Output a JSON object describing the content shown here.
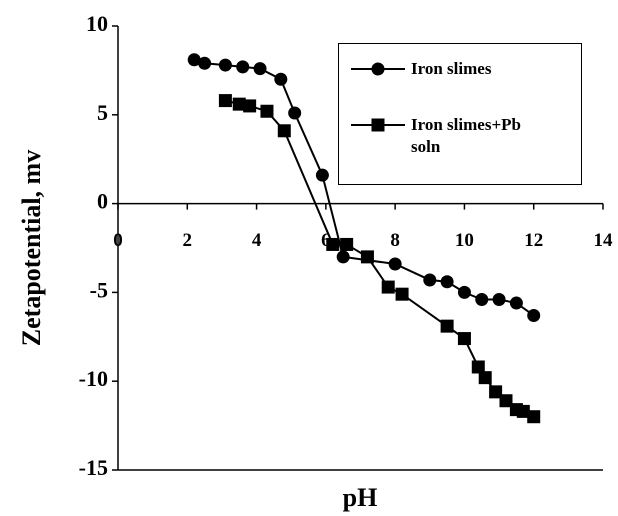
{
  "chart_data": {
    "type": "line",
    "x_label": "pH",
    "y_label": "Zetapotential, mv",
    "xlim": [
      0,
      14
    ],
    "xticks": [
      0,
      2,
      4,
      6,
      8,
      10,
      12,
      14
    ],
    "ylim": [
      -15,
      10
    ],
    "yticks": [
      -15,
      -10,
      -5,
      0,
      5,
      10
    ],
    "series": [
      {
        "name": "Iron slimes",
        "color": "#000000",
        "marker": "circle",
        "x": [
          2.2,
          2.5,
          3.1,
          3.6,
          4.1,
          4.7,
          5.1,
          5.9,
          6.5,
          8.0,
          9.0,
          9.5,
          10.0,
          10.5,
          11.0,
          11.5,
          12.0
        ],
        "values": [
          8.1,
          7.9,
          7.8,
          7.7,
          7.6,
          7.0,
          5.1,
          1.6,
          -3.0,
          -3.4,
          -4.3,
          -4.4,
          -5.0,
          -5.4,
          -5.4,
          -5.6,
          -6.3
        ]
      },
      {
        "name": "Iron slimes+Pb soln",
        "color": "#000000",
        "marker": "square",
        "x": [
          3.1,
          3.5,
          3.8,
          4.3,
          4.8,
          6.2,
          6.6,
          7.2,
          7.8,
          8.2,
          9.5,
          10.0,
          10.4,
          10.6,
          10.9,
          11.2,
          11.5,
          11.7,
          12.0
        ],
        "values": [
          5.8,
          5.6,
          5.5,
          5.2,
          4.1,
          -2.3,
          -2.3,
          -3.0,
          -4.7,
          -5.1,
          -6.9,
          -7.6,
          -9.2,
          -9.8,
          -10.6,
          -11.1,
          -11.6,
          -11.7,
          -12.0
        ]
      }
    ]
  }
}
